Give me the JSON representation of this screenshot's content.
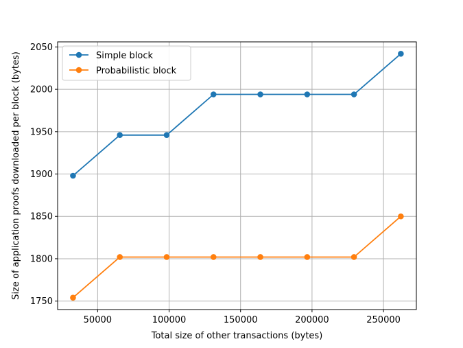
{
  "chart_data": {
    "type": "line",
    "title": "",
    "xlabel": "Total size of other transactions (bytes)",
    "ylabel": "Size of application proofs downloaded per block (bytes)",
    "x": [
      32768,
      65536,
      98304,
      131072,
      163840,
      196608,
      229376,
      262144
    ],
    "series": [
      {
        "name": "Simple block",
        "color": "#1f77b4",
        "marker": "circle",
        "values": [
          1898,
          1946,
          1946,
          1994,
          1994,
          1994,
          1994,
          2042
        ]
      },
      {
        "name": "Probabilistic block",
        "color": "#ff7f0e",
        "marker": "circle",
        "values": [
          1754,
          1802,
          1802,
          1802,
          1802,
          1802,
          1802,
          1850
        ]
      }
    ],
    "xlim": [
      22000,
      273000
    ],
    "ylim": [
      1740,
      2056
    ],
    "xticks": [
      50000,
      100000,
      150000,
      200000,
      250000
    ],
    "xtick_labels": [
      "50000",
      "100000",
      "150000",
      "200000",
      "250000"
    ],
    "yticks": [
      1750,
      1800,
      1850,
      1900,
      1950,
      2000,
      2050
    ],
    "ytick_labels": [
      "1750",
      "1800",
      "1850",
      "1900",
      "1950",
      "2000",
      "2050"
    ],
    "grid": true,
    "legend_position": "top-left"
  }
}
